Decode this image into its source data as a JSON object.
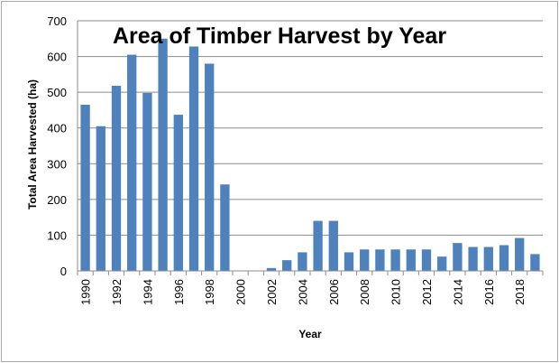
{
  "chart_data": {
    "type": "bar",
    "title": "Area of Timber Harvest by Year",
    "xlabel": "Year",
    "ylabel": "Total Area Harvested (ha)",
    "ylim": [
      0,
      700
    ],
    "yticks": [
      0,
      100,
      200,
      300,
      400,
      500,
      600,
      700
    ],
    "grid": true,
    "legend": "none",
    "bar_color": "#4f81bd",
    "categories": [
      1990,
      1991,
      1992,
      1993,
      1994,
      1995,
      1996,
      1997,
      1998,
      1999,
      2000,
      2001,
      2002,
      2003,
      2004,
      2005,
      2006,
      2007,
      2008,
      2009,
      2010,
      2011,
      2012,
      2013,
      2014,
      2015,
      2016,
      2017,
      2018,
      2019
    ],
    "tick_labels": [
      "1990",
      "1992",
      "1994",
      "1996",
      "1998",
      "2000",
      "2002",
      "2004",
      "2006",
      "2008",
      "2010",
      "2012",
      "2014",
      "2016",
      "2018"
    ],
    "values": [
      465,
      405,
      518,
      605,
      498,
      650,
      437,
      628,
      580,
      242,
      0,
      0,
      8,
      30,
      52,
      140,
      140,
      52,
      60,
      60,
      60,
      60,
      60,
      40,
      78,
      67,
      67,
      72,
      92,
      47
    ]
  }
}
